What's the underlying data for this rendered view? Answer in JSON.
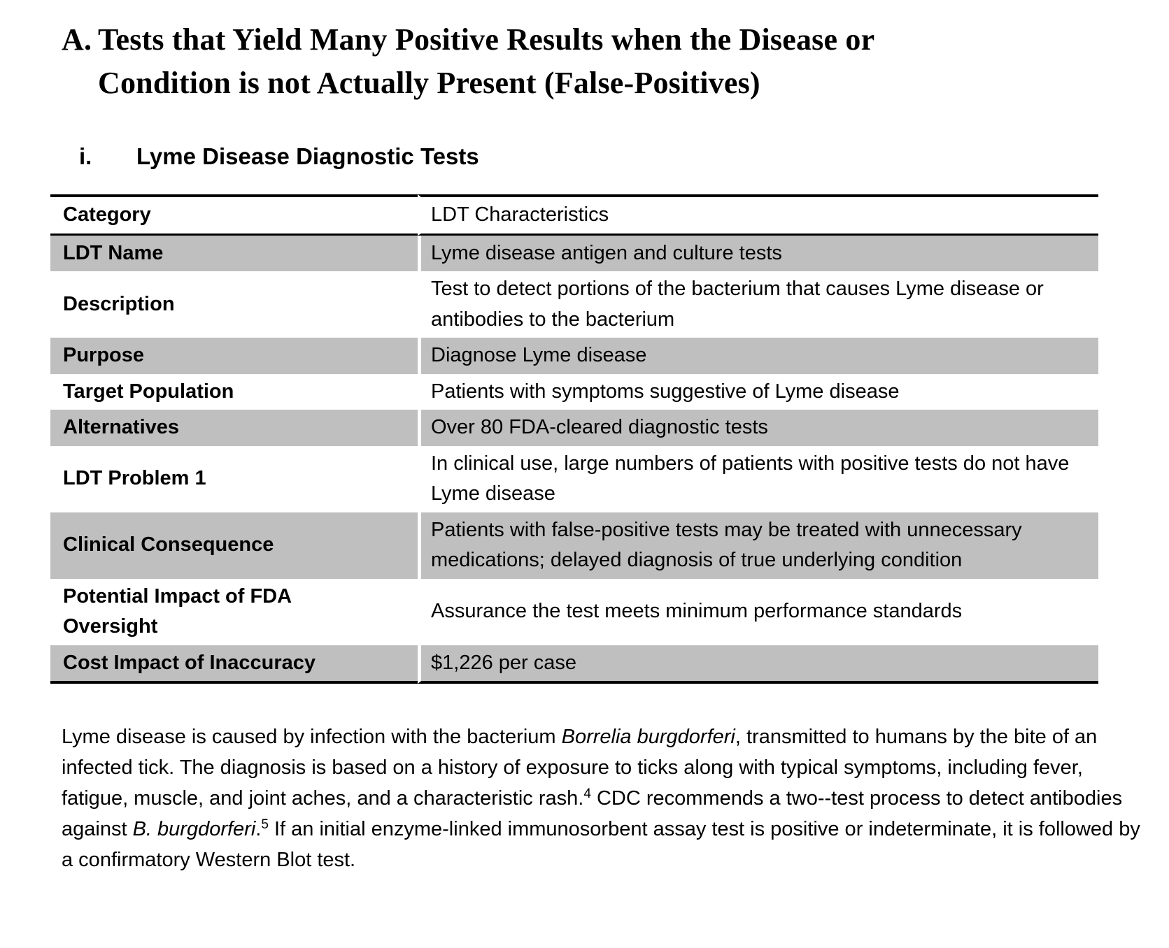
{
  "heading": {
    "marker": "A.",
    "lines": [
      "Tests that Yield Many Positive Results when the Disease or",
      "Condition is not Actually Present (False-Positives)"
    ]
  },
  "subheading": {
    "marker": "i.",
    "text": "Lyme Disease Diagnostic Tests"
  },
  "table": {
    "headers": [
      "Category",
      "LDT Characteristics"
    ],
    "rows": [
      {
        "category": "LDT Name",
        "value": "Lyme disease antigen and culture tests",
        "shaded": true
      },
      {
        "category": "Description",
        "value": "Test to detect portions of the bacterium that causes Lyme disease or antibodies to the bacterium",
        "shaded": false
      },
      {
        "category": "Purpose",
        "value": "Diagnose Lyme disease",
        "shaded": true
      },
      {
        "category": "Target Population",
        "value": "Patients with symptoms suggestive of Lyme disease",
        "shaded": false
      },
      {
        "category": "Alternatives",
        "value": "Over 80 FDA-cleared diagnostic tests",
        "shaded": true
      },
      {
        "category": "LDT Problem 1",
        "value": "In clinical use, large numbers of patients with positive tests do not have Lyme disease",
        "shaded": false
      },
      {
        "category": "Clinical Consequence",
        "value": "Patients with false-positive tests may be treated with unnecessary medications; delayed diagnosis of true underlying condition",
        "shaded": true
      },
      {
        "category": "Potential Impact of FDA Oversight",
        "value": "Assurance the test meets minimum performance standards",
        "shaded": false
      },
      {
        "category": "Cost Impact of Inaccuracy",
        "value": "$1,226 per case",
        "shaded": true
      }
    ]
  },
  "paragraph": {
    "segments": [
      {
        "text": "Lyme disease is caused by infection with the bacterium ",
        "style": "normal"
      },
      {
        "text": "Borrelia burgdorferi",
        "style": "italic"
      },
      {
        "text": ", transmitted to humans by the bite of an infected tick. The diagnosis is based on a history of exposure to ticks along with typical symptoms, including fever, fatigue, muscle, and joint aches, and a characteristic rash.",
        "style": "normal"
      },
      {
        "text": "4",
        "style": "superscript"
      },
      {
        "text": " CDC recommends a two--test process to detect antibodies against ",
        "style": "normal"
      },
      {
        "text": "B. burgdorferi",
        "style": "italic"
      },
      {
        "text": ".",
        "style": "normal"
      },
      {
        "text": "5",
        "style": "superscript"
      },
      {
        "text": " If an initial enzyme-linked immunosorbent assay test is positive or indeterminate, it is followed by a confirmatory Western Blot test.",
        "style": "normal"
      }
    ]
  },
  "colors": {
    "shaded_row": "#bfbfbf",
    "table_border": "#000000",
    "text": "#000000",
    "page_background": "#ffffff"
  }
}
